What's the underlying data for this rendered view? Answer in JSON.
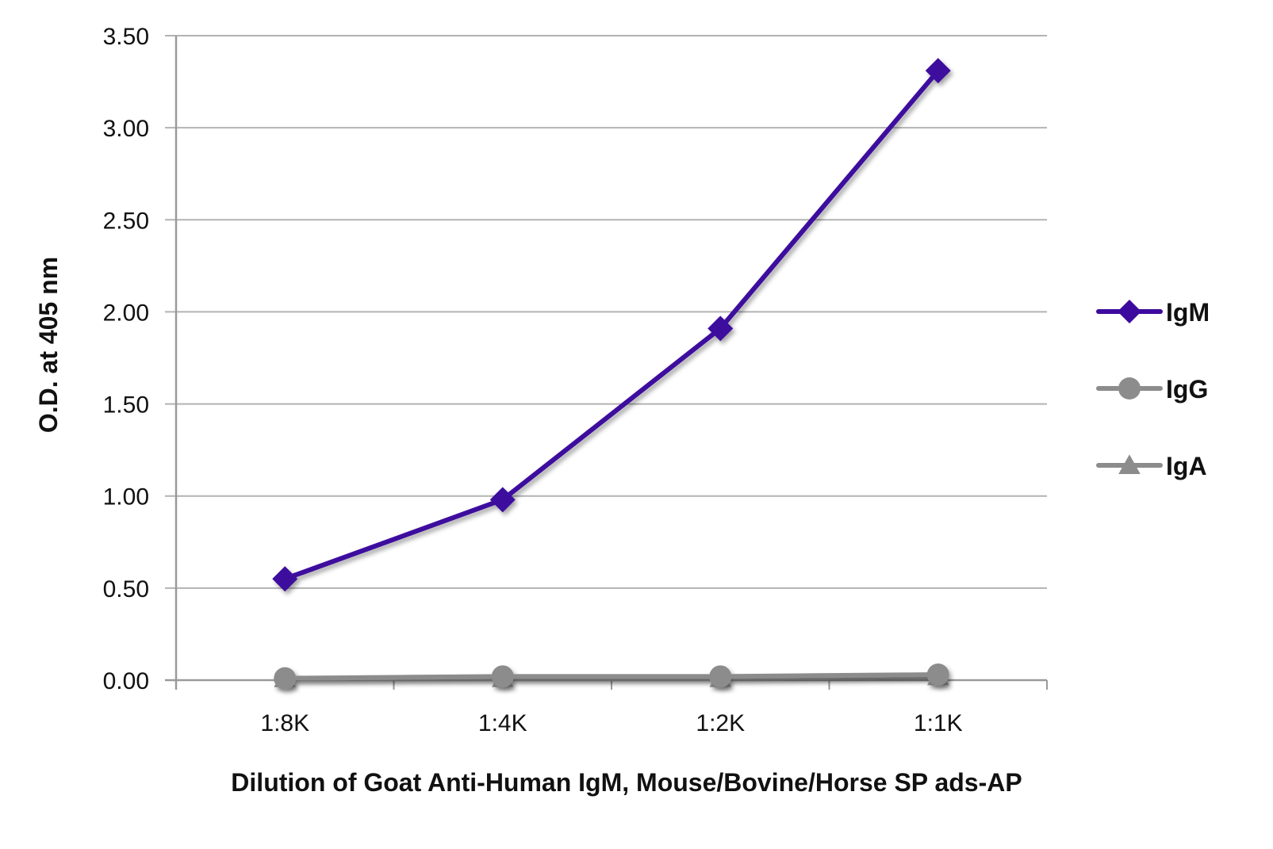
{
  "chart_data": {
    "type": "line",
    "xlabel": "Dilution of Goat Anti-Human IgM, Mouse/Bovine/Horse SP ads-AP",
    "ylabel": "O.D. at 405 nm",
    "categories": [
      "1:8K",
      "1:4K",
      "1:2K",
      "1:1K"
    ],
    "ylim": [
      0,
      3.5
    ],
    "yticks": [
      0,
      0.5,
      1,
      1.5,
      2,
      2.5,
      3,
      3.5
    ],
    "ytick_labels": [
      "0.00",
      "0.50",
      "1.00",
      "1.50",
      "2.00",
      "2.50",
      "3.00",
      "3.50"
    ],
    "grid": true,
    "legend_position": "right",
    "series": [
      {
        "name": "IgM",
        "values": [
          0.55,
          0.98,
          1.91,
          3.31
        ],
        "color": "#3d0a9e",
        "marker": "diamond"
      },
      {
        "name": "IgG",
        "values": [
          0.01,
          0.02,
          0.02,
          0.03
        ],
        "color": "#8c8c8c",
        "marker": "circle"
      },
      {
        "name": "IgA",
        "values": [
          0.01,
          0.01,
          0.01,
          0.02
        ],
        "color": "#8c8c8c",
        "marker": "triangle"
      }
    ]
  }
}
